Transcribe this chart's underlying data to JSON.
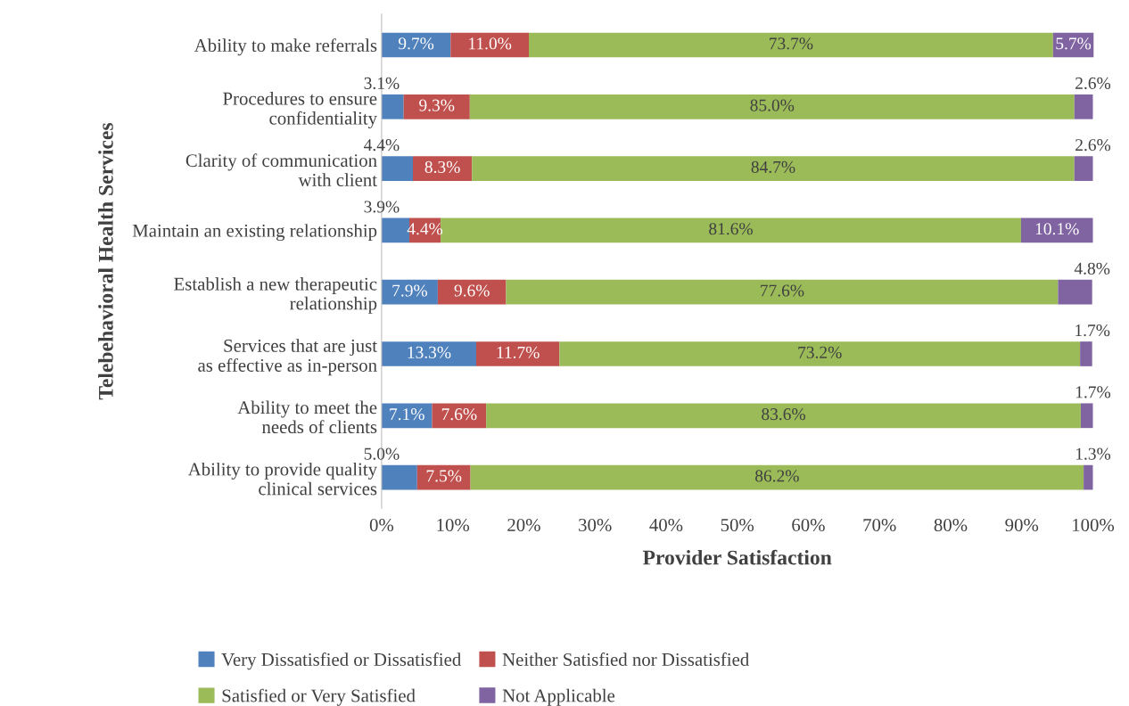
{
  "chart_data": {
    "type": "bar",
    "stacked": true,
    "orientation": "horizontal",
    "xlabel": "Provider Satisfaction",
    "ylabel": "Telebehavioral Health Services",
    "categories": [
      "Ability to make referrals",
      "Procedures to ensure\nconfidentiality",
      "Clarity of communication\nwith client",
      "Maintain an existing relationship",
      "Establish a new therapeutic\nrelationship",
      "Services that are just\nas effective as in-person",
      "Ability to meet the\nneeds of clients",
      "Ability to provide quality\nclinical services"
    ],
    "series": [
      {
        "name": "Very Dissatisfied or Dissatisfied",
        "color": "#4f81bd",
        "values": [
          9.7,
          3.1,
          4.4,
          3.9,
          7.9,
          13.3,
          7.1,
          5.0
        ],
        "value_labels": [
          "9.7%",
          "3.1%",
          "4.4%",
          "3.9%",
          "7.9%",
          "13.3%",
          "7.1%",
          "5.0%"
        ]
      },
      {
        "name": "Neither Satisfied nor Dissatisfied",
        "color": "#c0504d",
        "values": [
          11.0,
          9.3,
          8.3,
          4.4,
          9.6,
          11.7,
          7.6,
          7.5
        ],
        "value_labels": [
          "11.0%",
          "9.3%",
          "8.3%",
          "4.4%",
          "9.6%",
          "11.7%",
          "7.6%",
          "7.5%"
        ]
      },
      {
        "name": "Satisfied or Very Satisfied",
        "color": "#9bbb59",
        "values": [
          73.7,
          85.0,
          84.7,
          81.6,
          77.6,
          73.2,
          83.6,
          86.2
        ],
        "value_labels": [
          "73.7%",
          "85.0%",
          "84.7%",
          "81.6%",
          "77.6%",
          "73.2%",
          "83.6%",
          "86.2%"
        ]
      },
      {
        "name": "Not Applicable",
        "color": "#8064a2",
        "values": [
          5.7,
          2.6,
          2.6,
          10.1,
          4.8,
          1.7,
          1.7,
          1.3
        ],
        "value_labels": [
          "5.7%",
          "2.6%",
          "2.6%",
          "10.1%",
          "4.8%",
          "1.7%",
          "1.7%",
          "1.3%"
        ]
      }
    ],
    "xlim": [
      0,
      100
    ],
    "xticks": [
      {
        "value": 0,
        "label": "0%"
      },
      {
        "value": 10,
        "label": "10%"
      },
      {
        "value": 20,
        "label": "20%"
      },
      {
        "value": 30,
        "label": "30%"
      },
      {
        "value": 40,
        "label": "40%"
      },
      {
        "value": 50,
        "label": "50%"
      },
      {
        "value": 60,
        "label": "60%"
      },
      {
        "value": 70,
        "label": "70%"
      },
      {
        "value": 80,
        "label": "80%"
      },
      {
        "value": 90,
        "label": "90%"
      },
      {
        "value": 100,
        "label": "100%"
      }
    ],
    "grid": false,
    "legend": "bottom"
  }
}
